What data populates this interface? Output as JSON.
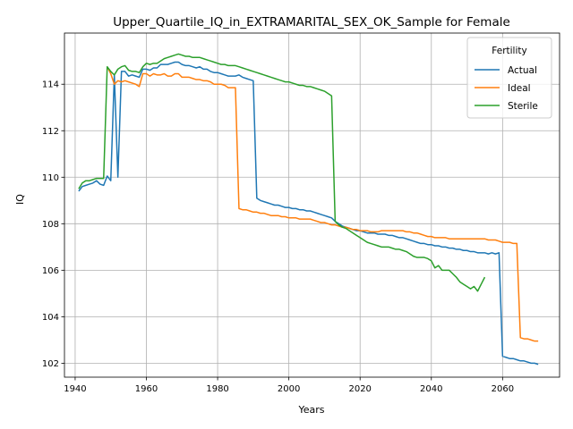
{
  "chart_data": {
    "type": "line",
    "title": "Upper_Quartile_IQ_in_EXTRAMARITAL_SEX_OK_Sample for Female",
    "xlabel": "Years",
    "ylabel": "IQ",
    "xlim": [
      1937,
      2076
    ],
    "ylim": [
      101.4,
      116.2
    ],
    "xticks": [
      1940,
      1960,
      1980,
      2000,
      2020,
      2040,
      2060
    ],
    "yticks": [
      102,
      104,
      106,
      108,
      110,
      112,
      114
    ],
    "grid": true,
    "legend": {
      "title": "Fertility",
      "placement": "top-right"
    },
    "series": [
      {
        "name": "Actual",
        "color": "#1f77b4",
        "x": [
          1941,
          1942,
          1943,
          1944,
          1945,
          1946,
          1947,
          1948,
          1949,
          1950,
          1951,
          1952,
          1953,
          1954,
          1955,
          1956,
          1957,
          1958,
          1959,
          1960,
          1961,
          1962,
          1963,
          1964,
          1965,
          1966,
          1967,
          1968,
          1969,
          1970,
          1971,
          1972,
          1973,
          1974,
          1975,
          1976,
          1977,
          1978,
          1979,
          1980,
          1981,
          1982,
          1983,
          1984,
          1985,
          1986,
          1987,
          1988,
          1989,
          1990,
          1991,
          1992,
          1993,
          1994,
          1995,
          1996,
          1997,
          1998,
          1999,
          2000,
          2001,
          2002,
          2003,
          2004,
          2005,
          2006,
          2007,
          2008,
          2009,
          2010,
          2011,
          2012,
          2013,
          2014,
          2015,
          2016,
          2017,
          2018,
          2019,
          2020,
          2021,
          2022,
          2023,
          2024,
          2025,
          2026,
          2027,
          2028,
          2029,
          2030,
          2031,
          2032,
          2033,
          2034,
          2035,
          2036,
          2037,
          2038,
          2039,
          2040,
          2041,
          2042,
          2043,
          2044,
          2045,
          2046,
          2047,
          2048,
          2049,
          2050,
          2051,
          2052,
          2053,
          2054,
          2055,
          2056,
          2057,
          2058,
          2059,
          2060,
          2061,
          2062,
          2063,
          2064,
          2065,
          2066,
          2067,
          2068,
          2069,
          2070
        ],
        "y": [
          109.4,
          109.6,
          109.65,
          109.7,
          109.75,
          109.85,
          109.7,
          109.65,
          110.05,
          109.85,
          114.4,
          110.0,
          114.55,
          114.55,
          114.35,
          114.4,
          114.35,
          114.3,
          114.65,
          114.65,
          114.6,
          114.7,
          114.7,
          114.85,
          114.85,
          114.85,
          114.9,
          114.95,
          114.95,
          114.85,
          114.8,
          114.8,
          114.75,
          114.7,
          114.75,
          114.65,
          114.65,
          114.55,
          114.5,
          114.5,
          114.45,
          114.4,
          114.35,
          114.35,
          114.35,
          114.4,
          114.3,
          114.25,
          114.2,
          114.15,
          109.1,
          109.0,
          108.95,
          108.9,
          108.85,
          108.8,
          108.8,
          108.75,
          108.7,
          108.7,
          108.65,
          108.65,
          108.6,
          108.6,
          108.55,
          108.55,
          108.5,
          108.45,
          108.4,
          108.35,
          108.3,
          108.25,
          108.1,
          108.0,
          107.9,
          107.85,
          107.8,
          107.75,
          107.7,
          107.7,
          107.65,
          107.6,
          107.6,
          107.6,
          107.55,
          107.55,
          107.55,
          107.5,
          107.5,
          107.45,
          107.4,
          107.4,
          107.35,
          107.3,
          107.25,
          107.2,
          107.15,
          107.15,
          107.1,
          107.1,
          107.05,
          107.05,
          107.0,
          107.0,
          106.95,
          106.95,
          106.9,
          106.9,
          106.85,
          106.85,
          106.8,
          106.8,
          106.75,
          106.75,
          106.75,
          106.7,
          106.75,
          106.7,
          106.75,
          102.3,
          102.25,
          102.2,
          102.2,
          102.15,
          102.1,
          102.1,
          102.05,
          102.0,
          102.0,
          101.95
        ]
      },
      {
        "name": "Ideal",
        "color": "#ff7f0e",
        "x": [
          1949,
          1950,
          1951,
          1952,
          1953,
          1954,
          1955,
          1956,
          1957,
          1958,
          1959,
          1960,
          1961,
          1962,
          1963,
          1964,
          1965,
          1966,
          1967,
          1968,
          1969,
          1970,
          1971,
          1972,
          1973,
          1974,
          1975,
          1976,
          1977,
          1978,
          1979,
          1980,
          1981,
          1982,
          1983,
          1984,
          1985,
          1986,
          1987,
          1988,
          1989,
          1990,
          1991,
          1992,
          1993,
          1994,
          1995,
          1996,
          1997,
          1998,
          1999,
          2000,
          2001,
          2002,
          2003,
          2004,
          2005,
          2006,
          2007,
          2008,
          2009,
          2010,
          2011,
          2012,
          2013,
          2014,
          2015,
          2016,
          2017,
          2018,
          2019,
          2020,
          2021,
          2022,
          2023,
          2024,
          2025,
          2026,
          2027,
          2028,
          2029,
          2030,
          2031,
          2032,
          2033,
          2034,
          2035,
          2036,
          2037,
          2038,
          2039,
          2040,
          2041,
          2042,
          2043,
          2044,
          2045,
          2046,
          2047,
          2048,
          2049,
          2050,
          2051,
          2052,
          2053,
          2054,
          2055,
          2056,
          2057,
          2058,
          2059,
          2060,
          2061,
          2062,
          2063,
          2064,
          2065,
          2066,
          2067,
          2068,
          2069,
          2070
        ],
        "y": [
          114.75,
          114.45,
          114.0,
          114.15,
          114.1,
          114.15,
          114.1,
          114.05,
          114.0,
          113.9,
          114.45,
          114.45,
          114.35,
          114.45,
          114.4,
          114.4,
          114.45,
          114.35,
          114.35,
          114.45,
          114.45,
          114.3,
          114.3,
          114.3,
          114.25,
          114.2,
          114.2,
          114.15,
          114.15,
          114.1,
          114.0,
          114.0,
          114.0,
          113.95,
          113.85,
          113.85,
          113.85,
          108.65,
          108.6,
          108.6,
          108.55,
          108.5,
          108.5,
          108.45,
          108.45,
          108.4,
          108.35,
          108.35,
          108.35,
          108.3,
          108.3,
          108.25,
          108.25,
          108.25,
          108.2,
          108.2,
          108.2,
          108.2,
          108.15,
          108.1,
          108.05,
          108.05,
          108.0,
          107.95,
          107.95,
          107.9,
          107.85,
          107.85,
          107.8,
          107.75,
          107.75,
          107.7,
          107.7,
          107.7,
          107.65,
          107.65,
          107.65,
          107.7,
          107.7,
          107.7,
          107.7,
          107.7,
          107.7,
          107.7,
          107.65,
          107.65,
          107.6,
          107.6,
          107.55,
          107.5,
          107.45,
          107.45,
          107.4,
          107.4,
          107.4,
          107.4,
          107.35,
          107.35,
          107.35,
          107.35,
          107.35,
          107.35,
          107.35,
          107.35,
          107.35,
          107.35,
          107.35,
          107.3,
          107.3,
          107.3,
          107.25,
          107.2,
          107.2,
          107.2,
          107.15,
          107.15,
          103.1,
          103.05,
          103.05,
          103.0,
          102.95,
          102.95
        ]
      },
      {
        "name": "Sterile",
        "color": "#2ca02c",
        "x": [
          1941,
          1942,
          1943,
          1944,
          1945,
          1946,
          1947,
          1948,
          1949,
          1950,
          1951,
          1952,
          1953,
          1954,
          1955,
          1956,
          1957,
          1958,
          1959,
          1960,
          1961,
          1962,
          1963,
          1964,
          1965,
          1966,
          1967,
          1968,
          1969,
          1970,
          1971,
          1972,
          1973,
          1974,
          1975,
          1976,
          1977,
          1978,
          1979,
          1980,
          1981,
          1982,
          1983,
          1984,
          1985,
          1986,
          1987,
          1988,
          1989,
          1990,
          1991,
          1992,
          1993,
          1994,
          1995,
          1996,
          1997,
          1998,
          1999,
          2000,
          2001,
          2002,
          2003,
          2004,
          2005,
          2006,
          2007,
          2008,
          2009,
          2010,
          2011,
          2012,
          2013,
          2014,
          2015,
          2016,
          2017,
          2018,
          2019,
          2020,
          2021,
          2022,
          2023,
          2024,
          2025,
          2026,
          2027,
          2028,
          2029,
          2030,
          2031,
          2032,
          2033,
          2034,
          2035,
          2036,
          2037,
          2038,
          2039,
          2040,
          2041,
          2042,
          2043,
          2044,
          2045,
          2046,
          2047,
          2048,
          2049,
          2050,
          2051,
          2052,
          2053,
          2054,
          2055
        ],
        "y": [
          109.5,
          109.75,
          109.85,
          109.85,
          109.9,
          109.95,
          109.95,
          109.95,
          114.75,
          114.55,
          114.4,
          114.65,
          114.75,
          114.8,
          114.6,
          114.55,
          114.55,
          114.5,
          114.75,
          114.9,
          114.85,
          114.9,
          114.9,
          115.0,
          115.1,
          115.15,
          115.2,
          115.25,
          115.3,
          115.25,
          115.2,
          115.2,
          115.15,
          115.15,
          115.15,
          115.1,
          115.05,
          115.0,
          114.95,
          114.9,
          114.85,
          114.85,
          114.8,
          114.8,
          114.8,
          114.75,
          114.7,
          114.65,
          114.6,
          114.55,
          114.5,
          114.45,
          114.4,
          114.35,
          114.3,
          114.25,
          114.2,
          114.15,
          114.1,
          114.1,
          114.05,
          114.0,
          113.95,
          113.95,
          113.9,
          113.9,
          113.85,
          113.8,
          113.75,
          113.7,
          113.6,
          113.5,
          108.1,
          107.95,
          107.85,
          107.8,
          107.7,
          107.6,
          107.5,
          107.4,
          107.3,
          107.2,
          107.15,
          107.1,
          107.05,
          107.0,
          107.0,
          107.0,
          106.95,
          106.9,
          106.9,
          106.85,
          106.8,
          106.7,
          106.6,
          106.55,
          106.55,
          106.55,
          106.5,
          106.4,
          106.1,
          106.2,
          106.0,
          106.0,
          106.0,
          105.85,
          105.7,
          105.5,
          105.4,
          105.3,
          105.2,
          105.3,
          105.1,
          105.4,
          105.7
        ]
      }
    ]
  }
}
